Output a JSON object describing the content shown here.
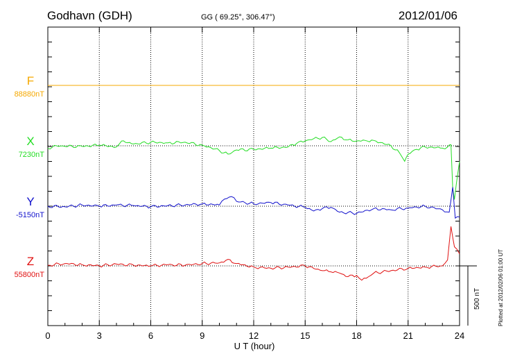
{
  "header": {
    "station": "Godhavn (GDH)",
    "coords": "GG ( 69.25°, 306.47°)",
    "date": "2012/01/06"
  },
  "side_note": "Plotted at 2012/02/06 01:00 UT",
  "scale_label": "500 nT",
  "colors": {
    "F": "#f5a800",
    "X": "#22dd22",
    "Y": "#1010cc",
    "Z": "#e01010",
    "axis": "#000000"
  },
  "chart_data": {
    "type": "line",
    "xlabel": "U T (hour)",
    "xlim": [
      0,
      24
    ],
    "x_ticks": [
      0,
      3,
      6,
      9,
      12,
      15,
      18,
      21,
      24
    ],
    "x_tick_labels": [
      "0",
      "3",
      "6",
      "9",
      "12",
      "15",
      "18",
      "21",
      "24"
    ],
    "scale_bar_nT": 500,
    "series": [
      {
        "name": "F",
        "baseline_label": "88880nT",
        "x": [
          0,
          24
        ],
        "values": [
          0,
          0
        ]
      },
      {
        "name": "X",
        "baseline_label": "7230nT",
        "x": [
          0,
          0.5,
          1,
          2,
          3,
          4,
          4.3,
          5,
          6,
          7,
          8,
          9,
          9.5,
          10,
          10.5,
          11,
          12,
          13,
          14,
          14.5,
          15,
          15.5,
          16,
          16.5,
          17,
          17.5,
          18,
          18.5,
          19,
          20,
          20.5,
          20.8,
          21,
          21.5,
          22,
          23,
          23.3,
          23.5,
          23.6,
          23.7,
          23.8,
          24
        ],
        "values": [
          -20,
          0,
          -5,
          -5,
          5,
          -10,
          40,
          15,
          30,
          25,
          30,
          5,
          -15,
          -40,
          -70,
          -35,
          -30,
          -20,
          -10,
          20,
          40,
          60,
          70,
          35,
          75,
          50,
          40,
          45,
          45,
          0,
          -60,
          -130,
          -70,
          -30,
          -10,
          -20,
          -10,
          10,
          -350,
          -450,
          -330,
          -130
        ]
      },
      {
        "name": "Y",
        "baseline_label": "-5150nT",
        "x": [
          0,
          1,
          2,
          3,
          4,
          5,
          6,
          7,
          8,
          9,
          10,
          10.3,
          10.7,
          11,
          12,
          13,
          14,
          15,
          15.5,
          16,
          16.5,
          17,
          18,
          19,
          20,
          21,
          22,
          23,
          23.4,
          23.6,
          23.75,
          24
        ],
        "values": [
          0,
          -5,
          10,
          0,
          10,
          5,
          -5,
          5,
          10,
          20,
          10,
          60,
          80,
          40,
          20,
          30,
          10,
          -10,
          -40,
          -20,
          -10,
          -50,
          -60,
          -20,
          -30,
          -15,
          0,
          -30,
          -50,
          160,
          -100,
          -90
        ]
      },
      {
        "name": "Z",
        "baseline_label": "55800nT",
        "x": [
          0,
          1,
          2,
          3,
          4,
          5,
          6,
          7,
          8,
          9,
          10,
          10.5,
          11,
          12,
          13,
          14,
          15,
          16,
          16.5,
          17,
          17.5,
          18,
          18.3,
          18.7,
          19,
          20,
          21,
          22,
          23,
          23.3,
          23.5,
          23.7,
          24
        ],
        "values": [
          5,
          20,
          10,
          0,
          15,
          5,
          0,
          10,
          5,
          20,
          25,
          55,
          20,
          -10,
          -20,
          -10,
          0,
          -40,
          -50,
          -60,
          -90,
          -80,
          -120,
          -90,
          -60,
          -40,
          -20,
          -10,
          0,
          50,
          330,
          160,
          100
        ]
      }
    ]
  }
}
